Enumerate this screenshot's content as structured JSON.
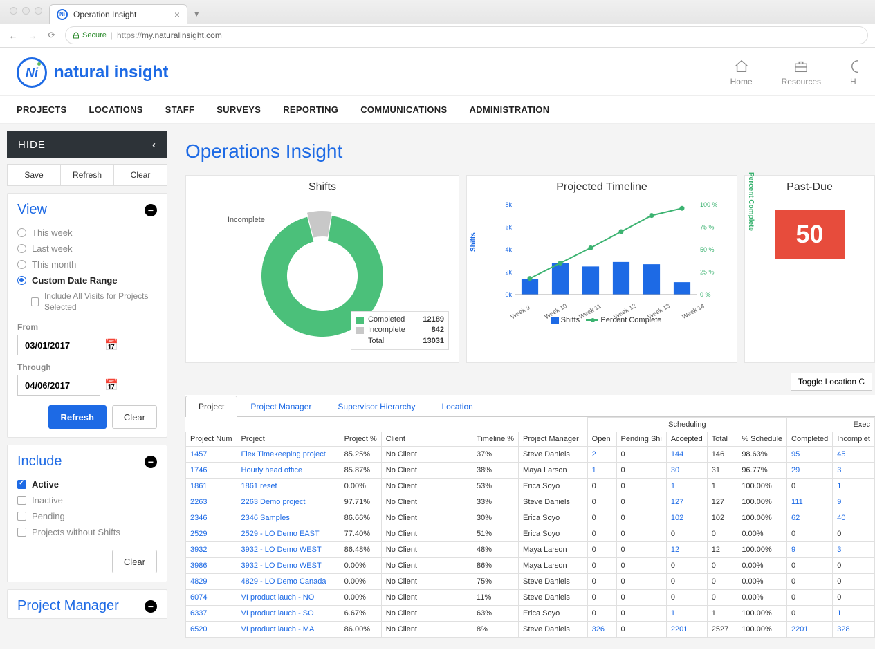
{
  "browser": {
    "tab_title": "Operation Insight",
    "secure_label": "Secure",
    "url_prefix": "https://",
    "url_host": "my.naturalinsight.com"
  },
  "header": {
    "logo_text": "natural insight",
    "icons": {
      "home": "Home",
      "resources": "Resources",
      "h": "H"
    }
  },
  "nav": [
    "PROJECTS",
    "LOCATIONS",
    "STAFF",
    "SURVEYS",
    "REPORTING",
    "COMMUNICATIONS",
    "ADMINISTRATION"
  ],
  "sidebar": {
    "hide_label": "HIDE",
    "top_buttons": [
      "Save",
      "Refresh",
      "Clear"
    ],
    "view": {
      "title": "View",
      "options": [
        "This week",
        "Last week",
        "This month",
        "Custom Date Range"
      ],
      "selected": 3,
      "include_all_label": "Include All Visits for Projects Selected",
      "from_label": "From",
      "from_value": "03/01/2017",
      "through_label": "Through",
      "through_value": "04/06/2017",
      "refresh_btn": "Refresh",
      "clear_btn": "Clear"
    },
    "include": {
      "title": "Include",
      "options": [
        "Active",
        "Inactive",
        "Pending",
        "Projects without Shifts"
      ],
      "checked": [
        true,
        false,
        false,
        false
      ],
      "clear_btn": "Clear"
    },
    "pm": {
      "title": "Project Manager"
    }
  },
  "page": {
    "title": "Operations Insight",
    "toggle_btn": "Toggle Location C"
  },
  "shifts_chart": {
    "title": "Shifts",
    "type": "donut",
    "colors": {
      "completed": "#4bc07a",
      "incomplete": "#c8c8c8"
    },
    "completed": 12189,
    "incomplete": 842,
    "total": 13031,
    "labels": {
      "completed": "Completed",
      "incomplete": "Incomplete",
      "total": "Total"
    },
    "incomplete_pct": 6.5,
    "inner_radius_pct": 58
  },
  "timeline_chart": {
    "title": "Projected Timeline",
    "type": "bar_line_combo",
    "categories": [
      "Week 9",
      "Week 10",
      "Week 11",
      "Week 12",
      "Week 13",
      "Week 14"
    ],
    "bar_values": [
      1400,
      2800,
      2500,
      2900,
      2700,
      1100
    ],
    "line_values": [
      18,
      35,
      52,
      70,
      88,
      96
    ],
    "y_left": {
      "label": "Shifts",
      "min": 0,
      "max": 8000,
      "ticks": [
        "0k",
        "2k",
        "4k",
        "6k",
        "8k"
      ],
      "color": "#1d6ae5"
    },
    "y_right": {
      "label": "Percent Complete",
      "min": 0,
      "max": 100,
      "ticks": [
        "0 %",
        "25 %",
        "50 %",
        "75 %",
        "100 %"
      ],
      "color": "#3cb371"
    },
    "bar_color": "#1d6ae5",
    "line_color": "#3cb371",
    "legend": {
      "bar": "Shifts",
      "line": "Percent Complete"
    }
  },
  "pastdue": {
    "title": "Past-Due",
    "value": "50",
    "bg_color": "#e74c3c"
  },
  "tabs": [
    "Project",
    "Project Manager",
    "Supervisor Hierarchy",
    "Location"
  ],
  "table": {
    "group_headers": {
      "scheduling": "Scheduling",
      "execution": "Exec"
    },
    "columns": [
      "Project Num",
      "Project",
      "Project %",
      "Client",
      "Timeline %",
      "Project Manager",
      "Open",
      "Pending Shi",
      "Accepted",
      "Total",
      "% Schedule",
      "Completed",
      "Incomplet"
    ],
    "rows": [
      [
        "1457",
        "Flex Timekeeping project",
        "85.25%",
        "No Client",
        "37%",
        "Steve Daniels",
        "2",
        "0",
        "144",
        "146",
        "98.63%",
        "95",
        "45"
      ],
      [
        "1746",
        "Hourly head office",
        "85.87%",
        "No Client",
        "38%",
        "Maya Larson",
        "1",
        "0",
        "30",
        "31",
        "96.77%",
        "29",
        "3"
      ],
      [
        "1861",
        "1861 reset",
        "0.00%",
        "No Client",
        "53%",
        "Erica Soyo",
        "0",
        "0",
        "1",
        "1",
        "100.00%",
        "0",
        "1"
      ],
      [
        "2263",
        "2263 Demo project",
        "97.71%",
        "No Client",
        "33%",
        "Steve Daniels",
        "0",
        "0",
        "127",
        "127",
        "100.00%",
        "111",
        "9"
      ],
      [
        "2346",
        "2346 Samples",
        "86.66%",
        "No Client",
        "30%",
        "Erica Soyo",
        "0",
        "0",
        "102",
        "102",
        "100.00%",
        "62",
        "40"
      ],
      [
        "2529",
        "2529 - LO Demo EAST",
        "77.40%",
        "No Client",
        "51%",
        "Erica Soyo",
        "0",
        "0",
        "0",
        "0",
        "0.00%",
        "0",
        "0"
      ],
      [
        "3932",
        "3932 - LO Demo WEST",
        "86.48%",
        "No Client",
        "48%",
        "Maya Larson",
        "0",
        "0",
        "12",
        "12",
        "100.00%",
        "9",
        "3"
      ],
      [
        "3986",
        "3932 - LO Demo WEST",
        "0.00%",
        "No Client",
        "86%",
        "Maya Larson",
        "0",
        "0",
        "0",
        "0",
        "0.00%",
        "0",
        "0"
      ],
      [
        "4829",
        "4829 - LO Demo Canada",
        "0.00%",
        "No Client",
        "75%",
        "Steve Daniels",
        "0",
        "0",
        "0",
        "0",
        "0.00%",
        "0",
        "0"
      ],
      [
        "6074",
        "VI product lauch -  NO",
        "0.00%",
        "No Client",
        "11%",
        "Steve Daniels",
        "0",
        "0",
        "0",
        "0",
        "0.00%",
        "0",
        "0"
      ],
      [
        "6337",
        "VI product lauch -  SO",
        "6.67%",
        "No Client",
        "63%",
        "Erica Soyo",
        "0",
        "0",
        "1",
        "1",
        "100.00%",
        "0",
        "1"
      ],
      [
        "6520",
        "VI product lauch -  MA",
        "86.00%",
        "No Client",
        "8%",
        "Steve Daniels",
        "326",
        "0",
        "2201",
        "2527",
        "100.00%",
        "2201",
        "328"
      ]
    ],
    "link_columns": [
      0,
      1,
      6,
      8,
      11,
      12
    ]
  }
}
